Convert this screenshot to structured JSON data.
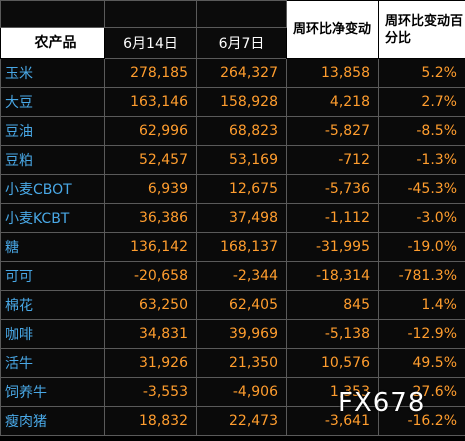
{
  "header": {
    "product_label": "农产品",
    "date1": "6月14日",
    "date2": "6月7日",
    "weekly_net_change": "周环比净变动",
    "weekly_pct_change": "周环比变动百分比"
  },
  "rows": [
    {
      "name": "玉米",
      "d1": "278,185",
      "d2": "264,327",
      "net": "13,858",
      "pct": "5.2%"
    },
    {
      "name": "大豆",
      "d1": "163,146",
      "d2": "158,928",
      "net": "4,218",
      "pct": "2.7%"
    },
    {
      "name": "豆油",
      "d1": "62,996",
      "d2": "68,823",
      "net": "-5,827",
      "pct": "-8.5%"
    },
    {
      "name": "豆粕",
      "d1": "52,457",
      "d2": "53,169",
      "net": "-712",
      "pct": "-1.3%"
    },
    {
      "name": "小麦CBOT",
      "d1": "6,939",
      "d2": "12,675",
      "net": "-5,736",
      "pct": "-45.3%"
    },
    {
      "name": "小麦KCBT",
      "d1": "36,386",
      "d2": "37,498",
      "net": "-1,112",
      "pct": "-3.0%"
    },
    {
      "name": "糖",
      "d1": "136,142",
      "d2": "168,137",
      "net": "-31,995",
      "pct": "-19.0%"
    },
    {
      "name": "可可",
      "d1": "-20,658",
      "d2": "-2,344",
      "net": "-18,314",
      "pct": "-781.3%"
    },
    {
      "name": "棉花",
      "d1": "63,250",
      "d2": "62,405",
      "net": "845",
      "pct": "1.4%"
    },
    {
      "name": "咖啡",
      "d1": "34,831",
      "d2": "39,969",
      "net": "-5,138",
      "pct": "-12.9%"
    },
    {
      "name": "活牛",
      "d1": "31,926",
      "d2": "21,350",
      "net": "10,576",
      "pct": "49.5%"
    },
    {
      "name": "饲养牛",
      "d1": "-3,553",
      "d2": "-4,906",
      "net": "1,353",
      "pct": "27.6%"
    },
    {
      "name": "瘦肉猪",
      "d1": "18,832",
      "d2": "22,473",
      "net": "-3,641",
      "pct": "-16.2%"
    }
  ],
  "watermark": "FX678",
  "colors": {
    "background": "#000000",
    "name_text": "#49a8e6",
    "number_text": "#ff9d2e",
    "header_cell": "#ffffff"
  }
}
